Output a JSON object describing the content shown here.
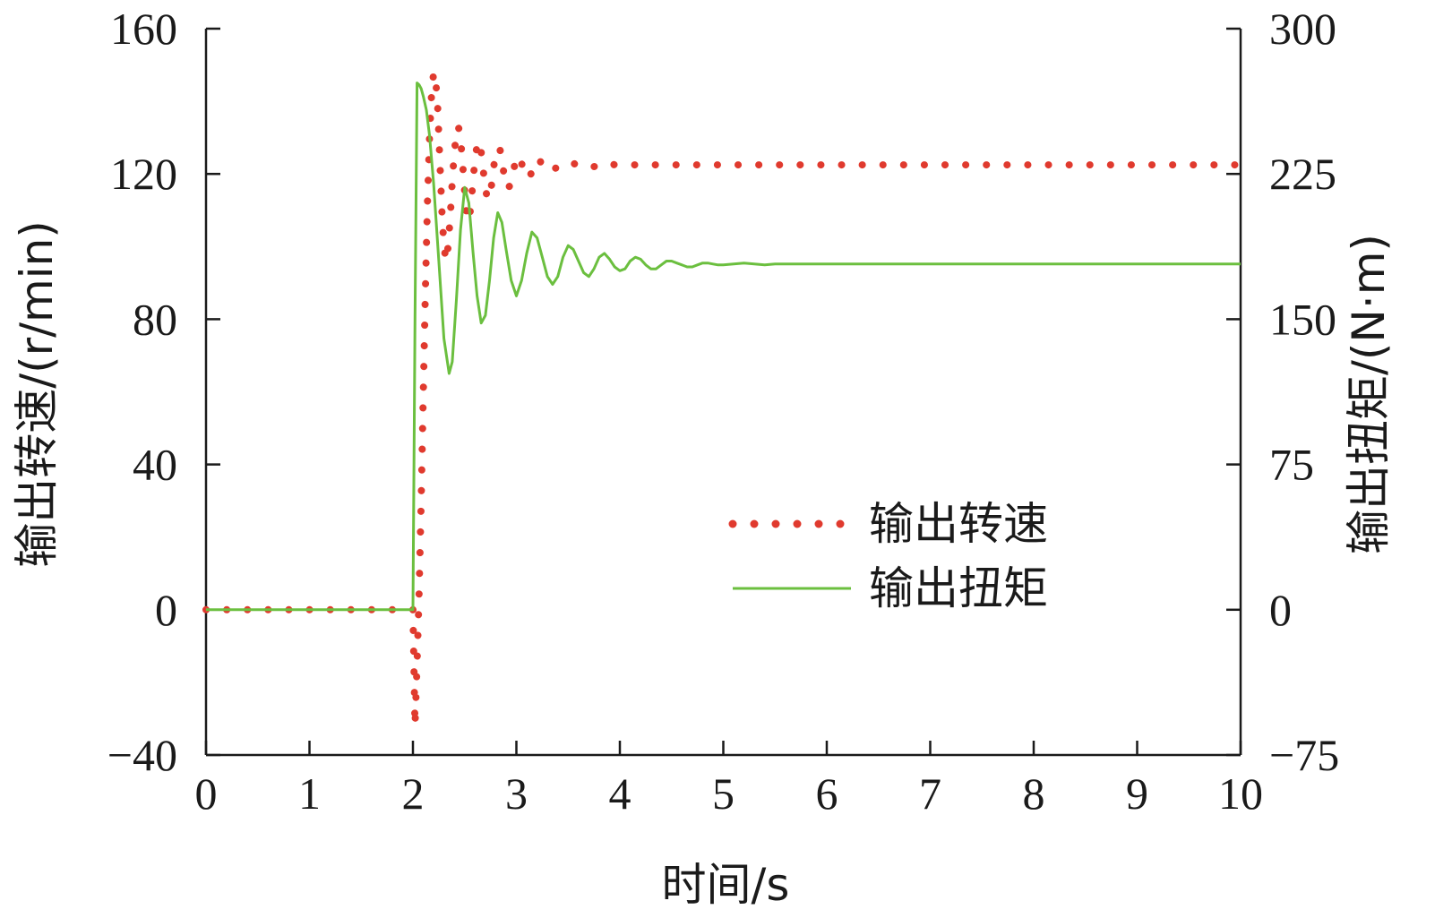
{
  "chart_data": {
    "type": "line",
    "xlabel": "时间/s",
    "ylabel_left": "输出转速/(r/min)",
    "ylabel_right": "输出扭矩/(N·m)",
    "xlim": [
      0,
      10
    ],
    "ylim_left": [
      -40,
      160
    ],
    "ylim_right": [
      -75,
      300
    ],
    "xticks": [
      "0",
      "1",
      "2",
      "3",
      "4",
      "5",
      "6",
      "7",
      "8",
      "9",
      "10"
    ],
    "yticks_left": [
      "-40",
      "0",
      "40",
      "80",
      "120",
      "160"
    ],
    "yticks_right": [
      "-75",
      "0",
      "75",
      "150",
      "225",
      "300"
    ],
    "grid": false,
    "legend_position": "center-right",
    "series": [
      {
        "name": "输出转速",
        "axis": "left",
        "style": "dotted",
        "color": "#e03a2e",
        "x": [
          0,
          0.1,
          0.2,
          0.3,
          0.4,
          0.5,
          0.6,
          0.7,
          0.8,
          0.9,
          1.0,
          1.1,
          1.2,
          1.3,
          1.4,
          1.5,
          1.6,
          1.7,
          1.8,
          1.9,
          2.0,
          2.02,
          2.04,
          2.06,
          2.08,
          2.1,
          2.12,
          2.14,
          2.16,
          2.18,
          2.2,
          2.22,
          2.24,
          2.26,
          2.28,
          2.3,
          2.32,
          2.34,
          2.36,
          2.38,
          2.4,
          2.42,
          2.44,
          2.46,
          2.48,
          2.5,
          2.52,
          2.54,
          2.56,
          2.58,
          2.6,
          2.62,
          2.64,
          2.66,
          2.68,
          2.7,
          2.72,
          2.74,
          2.76,
          2.78,
          2.8,
          2.82,
          2.84,
          2.86,
          2.88,
          2.9,
          2.92,
          2.94,
          2.96,
          2.98,
          3.0,
          3.02,
          3.04,
          3.06,
          3.08,
          3.1,
          3.12,
          3.14,
          3.16,
          3.18,
          3.2,
          3.22,
          3.24,
          3.26,
          3.28,
          3.3,
          3.35,
          3.4,
          3.45,
          3.5,
          3.55,
          3.6,
          3.65,
          3.7,
          3.75,
          3.8,
          3.85,
          3.9,
          3.95,
          4.0,
          4.1,
          4.2,
          4.3,
          4.4,
          4.5,
          4.6,
          4.7,
          4.8,
          4.9,
          5.0,
          5.2,
          5.4,
          5.6,
          5.8,
          6.0,
          6.5,
          7.0,
          7.5,
          8.0,
          8.5,
          9.0,
          9.5,
          10.0
        ],
        "y": [
          0,
          0,
          0,
          0,
          0,
          0,
          0,
          0,
          0,
          0,
          0,
          0,
          0,
          0,
          0,
          0,
          0,
          0,
          0,
          0,
          0,
          -32,
          -15,
          5,
          30,
          60,
          88,
          112,
          130,
          142,
          148,
          146,
          138,
          124,
          110,
          100,
          96,
          100,
          108,
          118,
          126,
          131,
          133,
          130,
          123,
          115,
          108,
          107,
          111,
          118,
          124,
          128,
          129,
          126,
          121,
          116,
          113,
          114,
          117,
          122,
          125,
          127,
          127,
          124,
          120,
          117,
          116,
          117,
          120,
          122,
          124,
          125,
          124,
          122,
          120,
          119,
          119,
          120,
          121,
          123,
          124,
          124,
          123,
          122,
          121,
          121,
          121,
          122,
          123,
          123,
          123,
          122,
          122,
          122,
          122,
          122.5,
          123,
          123,
          122.5,
          122.5,
          122.5,
          122.5,
          122.5,
          122.5,
          122.5,
          122.5,
          122.5,
          122.5,
          122.5,
          122.5,
          122.5,
          122.5,
          122.5,
          122.5,
          122.5,
          122.5,
          122.5,
          122.5,
          122.5,
          122.5,
          122.5,
          122.5,
          122.5
        ]
      },
      {
        "name": "输出扭矩",
        "axis": "right",
        "style": "solid",
        "color": "#6bbf3f",
        "x": [
          0,
          1.0,
          2.0,
          2.02,
          2.04,
          2.06,
          2.08,
          2.1,
          2.13,
          2.16,
          2.2,
          2.25,
          2.3,
          2.35,
          2.38,
          2.42,
          2.46,
          2.5,
          2.54,
          2.58,
          2.62,
          2.66,
          2.7,
          2.74,
          2.78,
          2.82,
          2.86,
          2.9,
          2.95,
          3.0,
          3.05,
          3.1,
          3.15,
          3.2,
          3.25,
          3.3,
          3.35,
          3.4,
          3.45,
          3.5,
          3.55,
          3.6,
          3.65,
          3.7,
          3.75,
          3.8,
          3.85,
          3.9,
          3.95,
          4.0,
          4.05,
          4.1,
          4.15,
          4.2,
          4.25,
          4.3,
          4.35,
          4.4,
          4.45,
          4.5,
          4.55,
          4.6,
          4.65,
          4.7,
          4.75,
          4.8,
          4.85,
          4.9,
          4.95,
          5.0,
          5.1,
          5.2,
          5.3,
          5.4,
          5.5,
          5.6,
          5.8,
          6.0,
          6.5,
          7.0,
          8.0,
          9.0,
          10.0
        ],
        "y": [
          0,
          0,
          0,
          150,
          272,
          271,
          269,
          265,
          258,
          245,
          220,
          180,
          140,
          122,
          128,
          160,
          196,
          218,
          210,
          185,
          162,
          148,
          152,
          170,
          192,
          205,
          200,
          186,
          170,
          162,
          170,
          184,
          195,
          192,
          182,
          172,
          168,
          172,
          182,
          188,
          186,
          180,
          174,
          172,
          176,
          182,
          184,
          181,
          177,
          175,
          176,
          180,
          182,
          181,
          178,
          176,
          176,
          178,
          180,
          180,
          179,
          178,
          177,
          177,
          178,
          179,
          179,
          178.5,
          178,
          178,
          178.5,
          179,
          178.5,
          178,
          178.5,
          178.5,
          178.5,
          178.5,
          178.5,
          178.5,
          178.5,
          178.5,
          178.5
        ]
      }
    ]
  }
}
